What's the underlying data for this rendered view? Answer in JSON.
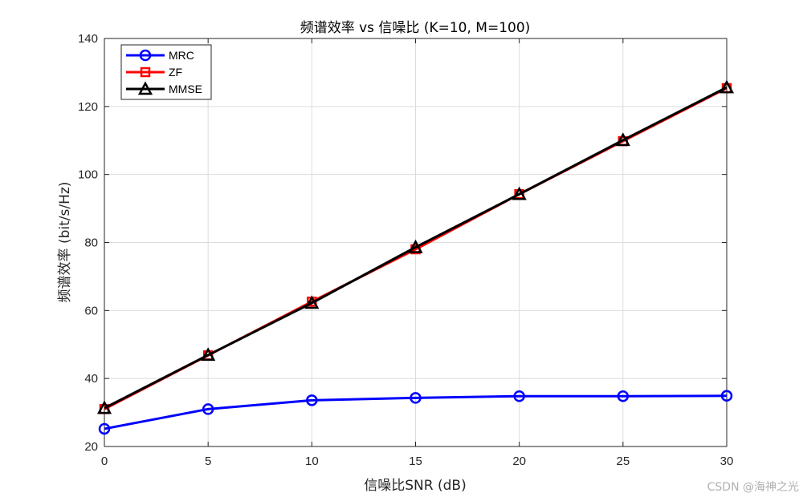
{
  "chart_data": {
    "type": "line",
    "title": "频谱效率 vs 信噪比 (K=10, M=100)",
    "xlabel": "信噪比SNR (dB)",
    "ylabel": "频谱效率 (bit/s/Hz)",
    "x": [
      0,
      5,
      10,
      15,
      20,
      25,
      30
    ],
    "xlim": [
      0,
      30
    ],
    "ylim": [
      20,
      140
    ],
    "xticks": [
      "0",
      "5",
      "10",
      "15",
      "20",
      "25",
      "30"
    ],
    "yticks": [
      "20",
      "40",
      "60",
      "80",
      "100",
      "120",
      "140"
    ],
    "grid": true,
    "legend_position": "top-left",
    "series": [
      {
        "name": "MRC",
        "values": [
          25.2,
          31.0,
          33.6,
          34.3,
          34.8,
          34.8,
          34.9
        ],
        "color": "#0000ff",
        "marker": "circle"
      },
      {
        "name": "ZF",
        "values": [
          31.0,
          46.8,
          62.6,
          78.0,
          94.2,
          109.8,
          125.4
        ],
        "color": "#ff0000",
        "marker": "square"
      },
      {
        "name": "MMSE",
        "values": [
          31.3,
          46.9,
          62.2,
          78.6,
          94.2,
          110.1,
          125.6
        ],
        "color": "#000000",
        "marker": "triangle"
      }
    ]
  },
  "watermark": "CSDN @海神之光"
}
